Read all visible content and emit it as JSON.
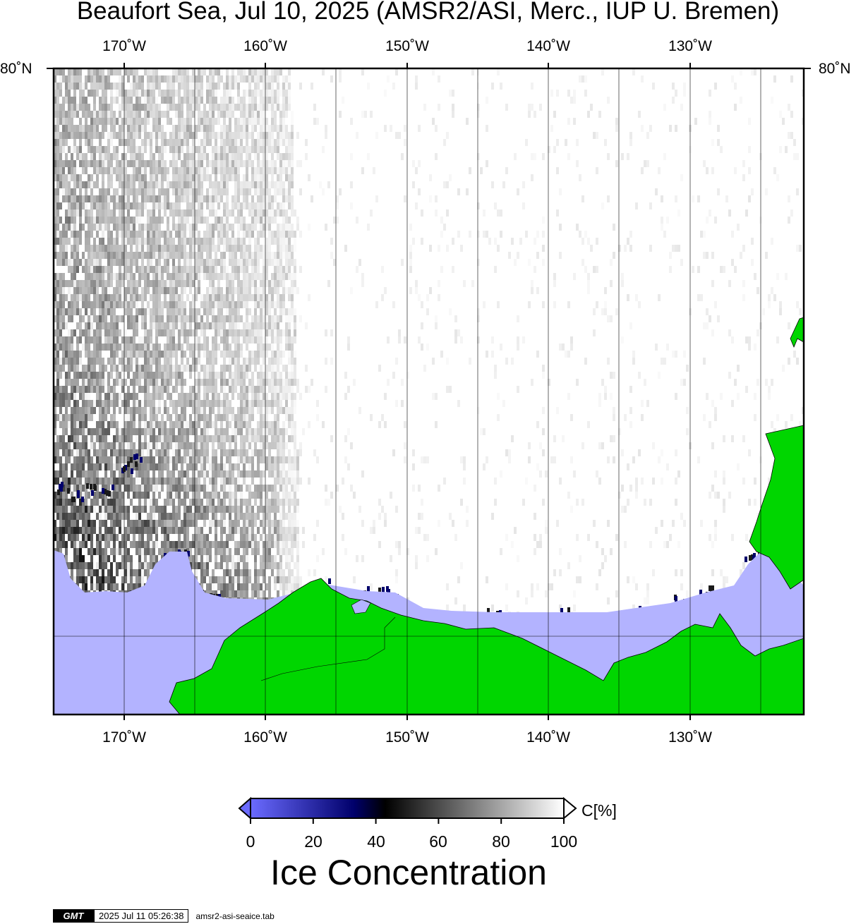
{
  "title": "Beaufort Sea, Jul 10, 2025 (AMSR2/ASI, Merc., IUP U. Bremen)",
  "map": {
    "lon_labels": [
      "170˚W",
      "160˚W",
      "150˚W",
      "140˚W",
      "130˚W"
    ],
    "lat_labels": {
      "left": "80˚N",
      "right": "80˚N"
    },
    "colors": {
      "land": "#00d600",
      "open_water": "#b3b3ff",
      "ice_full": "#ffffff",
      "frame": "#000000"
    }
  },
  "colorbar": {
    "ticks": [
      "0",
      "20",
      "40",
      "60",
      "80",
      "100"
    ],
    "unit": "C[%]",
    "title": "Ice Concentration",
    "stops": [
      "#6b6bff",
      "#00006b",
      "#000000",
      "#ffffff"
    ]
  },
  "stamp": {
    "logo": "GMT",
    "timestamp": "2025 Jul 11 05:26:38",
    "file": "amsr2-asi-seaice.tab"
  }
}
